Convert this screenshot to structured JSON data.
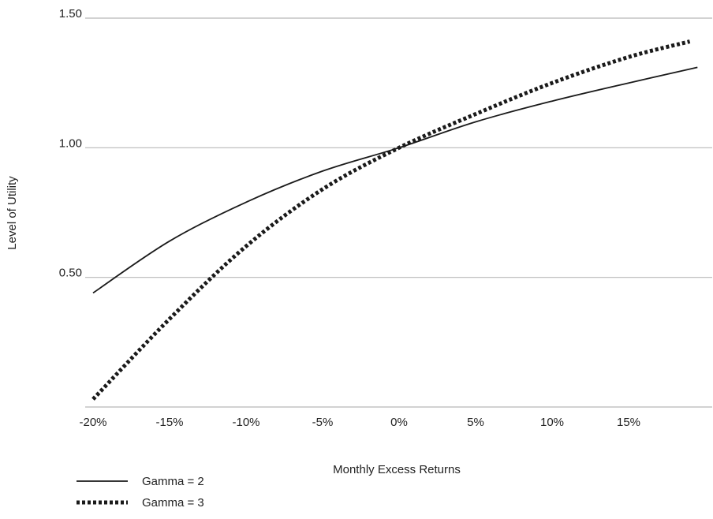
{
  "chart_data": {
    "type": "line",
    "title": "",
    "xlabel": "Monthly Excess Returns",
    "ylabel": "Level of Utility",
    "xlim": [
      -0.205,
      0.2
    ],
    "ylim": [
      0.0,
      1.5
    ],
    "grid": "horizontal",
    "legend_position": "bottom-left",
    "x_tick_labels": [
      "-20%",
      "-15%",
      "-10%",
      "-5%",
      "0%",
      "5%",
      "10%",
      "15%"
    ],
    "x_ticks": [
      -0.2,
      -0.15,
      -0.1,
      -0.05,
      0.0,
      0.05,
      0.1,
      0.15
    ],
    "y_tick_labels": [
      "0.50",
      "1.00",
      "1.50"
    ],
    "y_ticks": [
      0.5,
      1.0,
      1.5
    ],
    "series": [
      {
        "name": "Gamma = 2",
        "style": "solid",
        "color": "#1a1a1a",
        "x": [
          -0.2,
          -0.15,
          -0.1,
          -0.05,
          0.0,
          0.05,
          0.1,
          0.15,
          0.195
        ],
        "y": [
          0.44,
          0.64,
          0.79,
          0.91,
          1.0,
          1.1,
          1.18,
          1.25,
          1.31
        ]
      },
      {
        "name": "Gamma = 3",
        "style": "dotted",
        "color": "#1a1a1a",
        "x": [
          -0.2,
          -0.15,
          -0.1,
          -0.05,
          0.0,
          0.05,
          0.1,
          0.15,
          0.19
        ],
        "y": [
          0.03,
          0.34,
          0.62,
          0.84,
          1.0,
          1.13,
          1.25,
          1.35,
          1.41
        ]
      }
    ]
  }
}
